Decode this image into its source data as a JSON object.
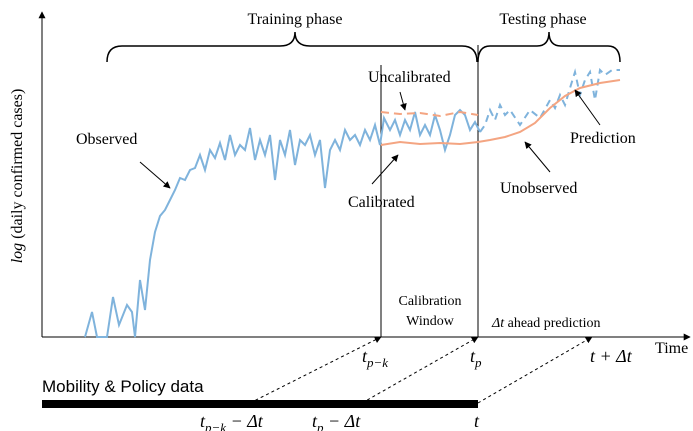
{
  "header": {
    "training": "Training phase",
    "testing": "Testing phase"
  },
  "axes": {
    "y_label_italic": "log",
    "y_label_rest": " (daily confirmed cases)",
    "x_label": "Time"
  },
  "annotations": {
    "observed": "Observed",
    "uncalibrated": "Uncalibrated",
    "calibrated": "Calibrated",
    "unobserved": "Unobserved",
    "prediction": "Prediction",
    "calibration_window_1": "Calibration",
    "calibration_window_2": "Window",
    "ahead_prediction_delta": "Δt",
    "ahead_prediction_rest": " ahead prediction"
  },
  "time_marks": {
    "t_pk": {
      "base": "t",
      "sub": "p−k"
    },
    "t_p": {
      "base": "t",
      "sub": "p"
    },
    "t_delta": "t + Δt"
  },
  "mobility": {
    "label": "Mobility & Policy data",
    "t_pk_shift": {
      "base": "t",
      "sub": "p−k",
      "rest": " − Δt"
    },
    "t_p_shift": {
      "base": "t",
      "sub": "p",
      "rest": " − Δt"
    },
    "t": "t"
  }
}
